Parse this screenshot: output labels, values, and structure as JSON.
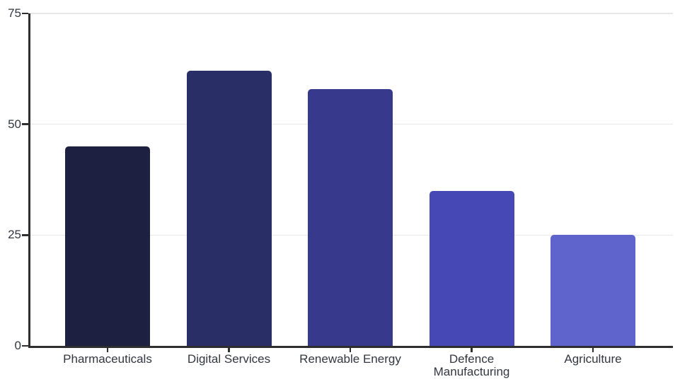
{
  "page": {
    "background_color": "#ffffff"
  },
  "chart_data": {
    "type": "bar",
    "title": "",
    "xlabel": "",
    "ylabel": "",
    "categories": [
      "Pharmaceuticals",
      "Digital Services",
      "Renewable Energy",
      "Defence Manufacturing",
      "Agriculture"
    ],
    "values": [
      45,
      62,
      58,
      35,
      25
    ],
    "bar_colors": [
      "#1d2041",
      "#292e67",
      "#373a8c",
      "#4649b5",
      "#5f64cc"
    ],
    "ylim": [
      0,
      75
    ],
    "yticks": [
      0,
      25,
      50,
      75
    ],
    "grid": true,
    "legend": false,
    "gridline_color": "#e7e7e7",
    "axis_color": "#2e2e2e",
    "tick_label_color": "#333640"
  }
}
